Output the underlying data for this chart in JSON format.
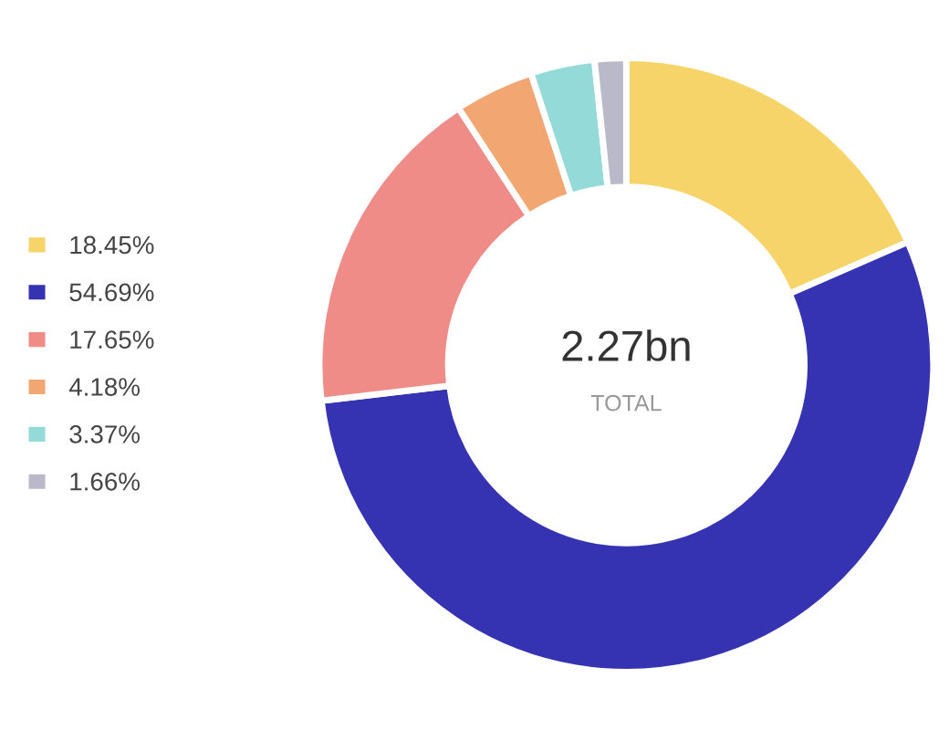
{
  "chart_data": {
    "type": "donut",
    "categories": [
      "18.45%",
      "54.69%",
      "17.65%",
      "4.18%",
      "3.37%",
      "1.66%"
    ],
    "values": [
      18.45,
      54.69,
      17.65,
      4.18,
      3.37,
      1.66
    ],
    "colors": [
      "#f7d46a",
      "#3533b2",
      "#ef8c88",
      "#f2a772",
      "#94dad9",
      "#b9b9ca"
    ],
    "annotations": [
      "2.27bn",
      "TOTAL"
    ],
    "legend": "left"
  }
}
